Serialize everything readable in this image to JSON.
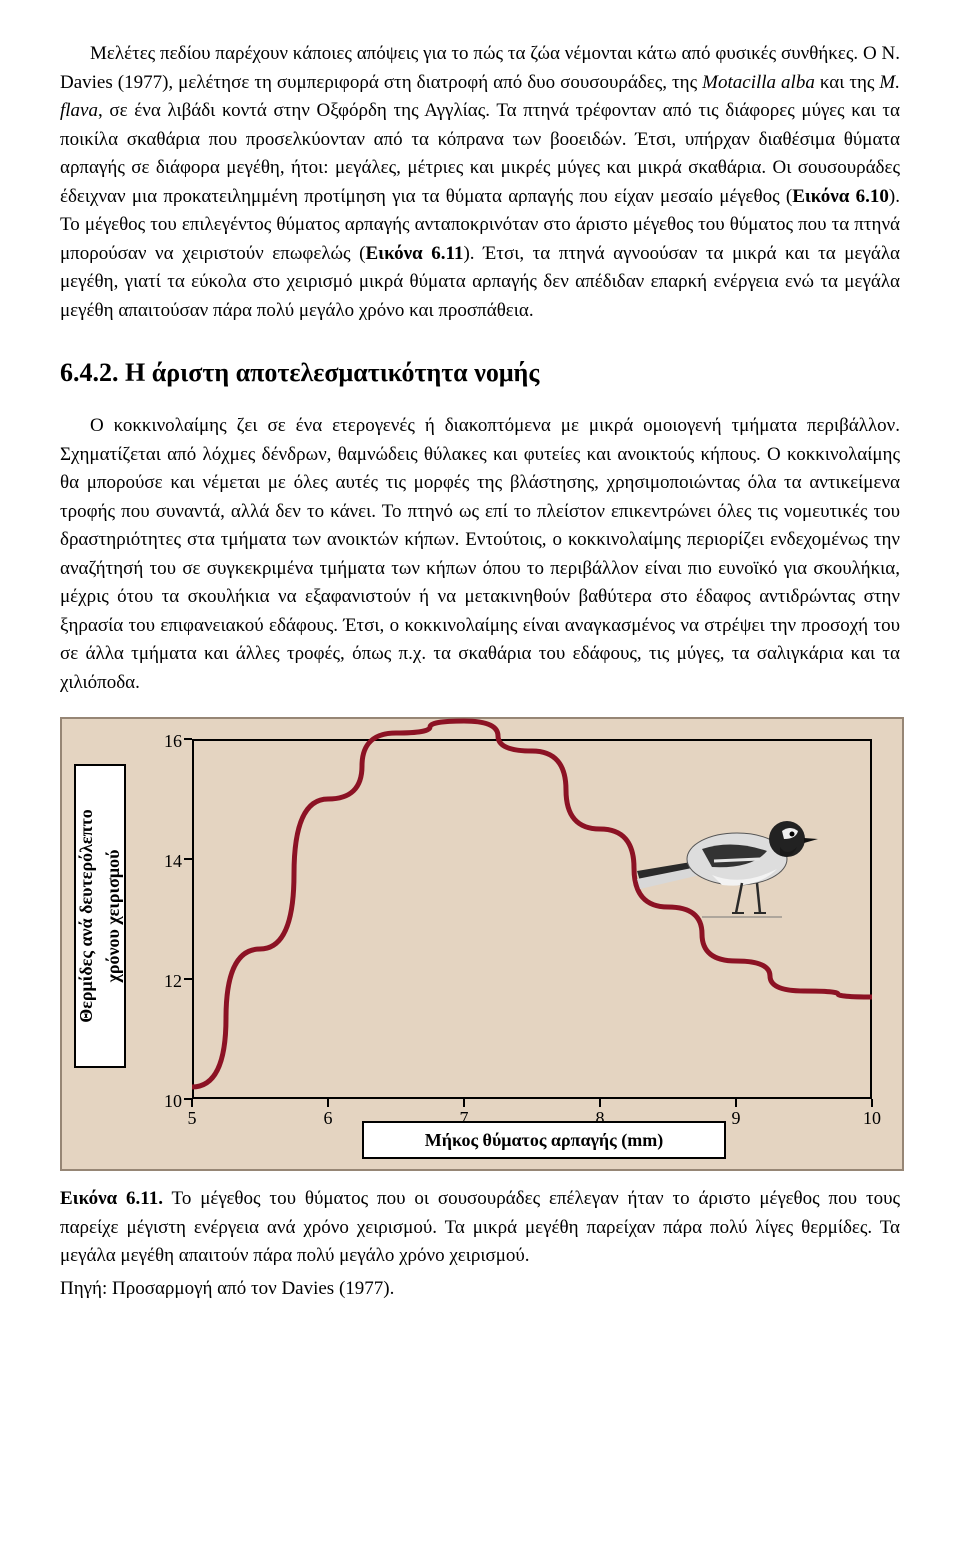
{
  "para1_a": "Μελέτες πεδίου παρέχουν κάποιες απόψεις για το πώς τα ζώα νέμονται κάτω από φυσικές συνθήκες. Ο N. Davies (1977), μελέτησε τη συμπεριφορά στη διατροφή από δυο σουσουράδες, της ",
  "para1_i1": "Motacilla alba",
  "para1_b": " και της ",
  "para1_i2": "M. flava",
  "para1_c": ", σε ένα λιβάδι κοντά στην Οξφόρδη της Αγγλίας. Τα πτηνά τρέφονταν από τις διάφορες μύγες και τα ποικίλα σκαθάρια που προσελκύονταν από τα κόπρανα των βοοειδών. Έτσι, υπήρχαν διαθέσιμα θύματα αρπαγής σε διάφορα μεγέθη, ήτοι: μεγάλες, μέτριες και μικρές μύγες και μικρά σκαθάρια. Οι σουσουράδες έδειχναν μια προκατειλημμένη προτίμηση για τα θύματα αρπαγής που είχαν μεσαίο μέγεθος (",
  "para1_b1": "Εικόνα 6.10",
  "para1_d": "). Το μέγεθος του επιλεγέντος θύματος αρπαγής ανταποκρινόταν στο άριστο μέγεθος του θύματος που τα πτηνά μπορούσαν να χειριστούν επωφελώς (",
  "para1_b2": "Εικόνα 6.11",
  "para1_e": "). Έτσι, τα πτηνά αγνοούσαν τα μικρά και τα μεγάλα μεγέθη, γιατί τα εύκολα στο χειρισμό μικρά θύματα αρπαγής δεν απέδιδαν επαρκή ενέργεια ενώ τα μεγάλα μεγέθη απαιτούσαν πάρα πολύ μεγάλο χρόνο και προσπάθεια.",
  "heading": "6.4.2. Η άριστη αποτελεσματικότητα νομής",
  "para2": "Ο κοκκινολαίμης ζει σε ένα ετερογενές ή διακοπτόμενα με μικρά ομοιογενή τμήματα περιβάλλον. Σχηματίζεται από λόχμες δένδρων, θαμνώδεις θύλακες και φυτείες και ανοικτούς κήπους. Ο κοκκινολαίμης θα μπορούσε και νέμεται με όλες αυτές τις μορφές της βλάστησης, χρησιμοποιώντας όλα τα αντικείμενα τροφής που συναντά, αλλά δεν το κάνει. Το πτηνό ως επί το πλείστον επικεντρώνει όλες τις νομευτικές του δραστηριότητες στα τμήματα των ανοικτών κήπων. Εντούτοις, ο κοκκινολαίμης περιορίζει ενδεχομένως την αναζήτησή του σε συγκεκριμένα τμήματα των κήπων όπου το περιβάλλον είναι πιο ευνοϊκό για σκουλήκια, μέχρις ότου τα σκουλήκια να εξαφανιστούν ή να μετακινηθούν βαθύτερα στο έδαφος αντιδρώντας στην ξηρασία του επιφανειακού εδάφους. Έτσι, ο κοκκινολαίμης είναι αναγκασμένος να στρέψει την προσοχή του σε άλλα τμήματα και άλλες τροφές, όπως π.χ. τα σκαθάρια του εδάφους, τις μύγες, τα σαλιγκάρια και τα χιλιόποδα.",
  "chart": {
    "type": "line",
    "background_color": "#e4d4c1",
    "border_color": "#968675",
    "x_label": "Μήκος θύματος αρπαγής (mm)",
    "y_label_line1": "Θερμίδες ανά δευτερόλεπτο",
    "y_label_line2": "χρόνου χειρισμού",
    "xlim": [
      5,
      10
    ],
    "ylim": [
      10,
      16
    ],
    "x_ticks": [
      5,
      6,
      7,
      8,
      9,
      10
    ],
    "y_ticks": [
      10,
      12,
      14,
      16
    ],
    "curve_color": "#8c1224",
    "curve_width": 5,
    "curve_points": [
      [
        5.0,
        10.2
      ],
      [
        5.5,
        12.5
      ],
      [
        6.0,
        15.0
      ],
      [
        6.5,
        16.1
      ],
      [
        7.0,
        16.3
      ],
      [
        7.5,
        15.8
      ],
      [
        8.0,
        14.5
      ],
      [
        8.5,
        13.2
      ],
      [
        9.0,
        12.3
      ],
      [
        9.5,
        11.8
      ],
      [
        10.0,
        11.7
      ]
    ],
    "axis_label_fontsize": 18,
    "tick_fontsize": 18
  },
  "caption_b": "Εικόνα 6.11.",
  "caption_t": " Το μέγεθος του θύματος που οι σουσουράδες επέλεγαν ήταν το άριστο μέγεθος που τους παρείχε μέγιστη ενέργεια ανά χρόνο χειρισμού. Τα μικρά μεγέθη παρείχαν πάρα πολύ λίγες θερμίδες. Τα μεγάλα μεγέθη απαιτούν πάρα πολύ μεγάλο χρόνο χειρισμού.",
  "source": "Πηγή: Προσαρμογή από τον Davies (1977)."
}
